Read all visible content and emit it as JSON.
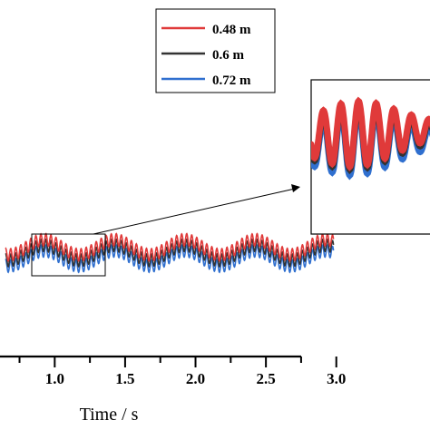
{
  "chart_data": {
    "type": "line",
    "xlabel": "Time / s",
    "ylabel": "",
    "xlim": [
      0.65,
      3.2
    ],
    "x_ticks": [
      "1.0",
      "1.5",
      "2.0",
      "2.5",
      "3.0"
    ],
    "x_tick_values": [
      1.0,
      1.5,
      2.0,
      2.5,
      3.0
    ],
    "grid": false,
    "legend_position": "top-right",
    "inset": "zoomed-view",
    "series": [
      {
        "name": "0.48 m",
        "color": "#e03a3a",
        "offset": 0.6,
        "x_range": [
          0.65,
          2.98
        ]
      },
      {
        "name": "0.6 m",
        "color": "#333333",
        "offset": 0.3,
        "x_range": [
          0.65,
          2.98
        ]
      },
      {
        "name": "0.72 m",
        "color": "#2f6fcf",
        "offset": 0.0,
        "x_range": [
          0.65,
          2.98
        ]
      }
    ]
  }
}
